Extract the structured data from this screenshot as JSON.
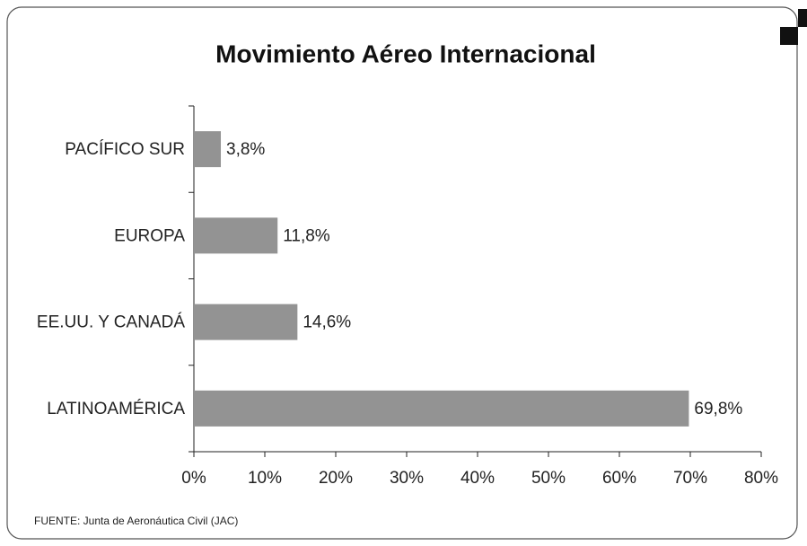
{
  "chart_data": {
    "type": "bar",
    "orientation": "horizontal",
    "title": "Movimiento Aéreo Internacional",
    "categories": [
      "PACÍFICO SUR",
      "EUROPA",
      "EE.UU. Y CANADÁ",
      "LATINOAMÉRICA"
    ],
    "values": [
      3.8,
      11.8,
      14.6,
      69.8
    ],
    "value_labels": [
      "3,8%",
      "11,8%",
      "14,6%",
      "69,8%"
    ],
    "color": "#939393",
    "xlim": [
      0,
      80
    ],
    "xticks": [
      {
        "value": 0,
        "label": "0%"
      },
      {
        "value": 10,
        "label": "10%"
      },
      {
        "value": 20,
        "label": "20%"
      },
      {
        "value": 30,
        "label": "30%"
      },
      {
        "value": 40,
        "label": "40%"
      },
      {
        "value": 50,
        "label": "50%"
      },
      {
        "value": 60,
        "label": "60%"
      },
      {
        "value": 70,
        "label": "70%"
      },
      {
        "value": 80,
        "label": "80%"
      }
    ],
    "source": "FUENTE: Junta de Aeronáutica Civil (JAC)"
  }
}
